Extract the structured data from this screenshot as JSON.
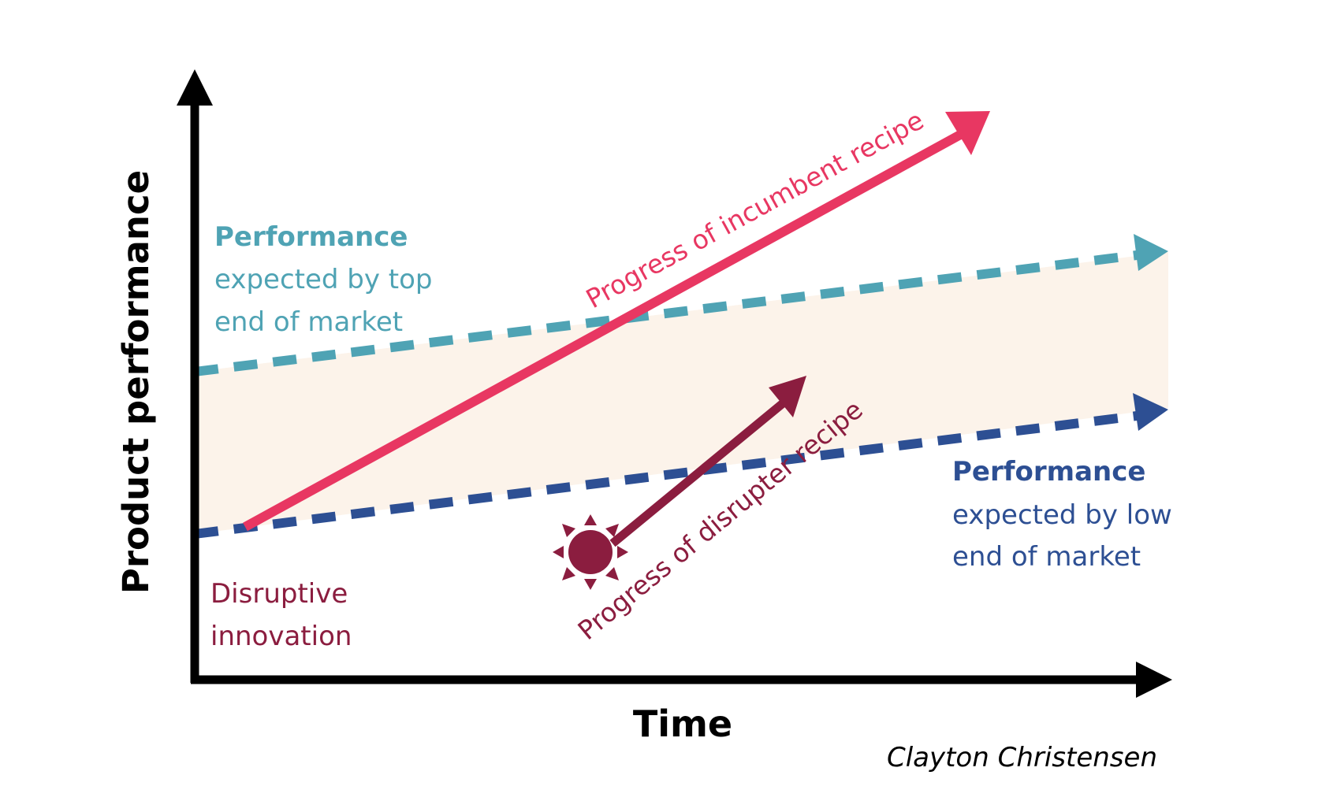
{
  "axes": {
    "y_label": "Product performance",
    "x_label": "Time"
  },
  "labels": {
    "top_market": {
      "title": "Performance",
      "line1": "expected by top",
      "line2": "end of market",
      "color": "#4fa3b4"
    },
    "low_market": {
      "title": "Performance",
      "line1": "expected by low",
      "line2": "end of market",
      "color": "#2d4f93"
    },
    "disruptive": {
      "line1": "Disruptive",
      "line2": "innovation",
      "color": "#8b1d3f"
    },
    "incumbent_arrow": {
      "text": "Progress of incumbent recipe",
      "color": "#e83762"
    },
    "disrupter_arrow": {
      "text": "Progress of disrupter recipe",
      "color": "#8b1d3f"
    },
    "credit": "Clayton Christensen"
  },
  "colors": {
    "band_fill": "#fcf3ea",
    "axis": "#000000"
  },
  "icons": {
    "disruption_marker": "sun-icon"
  }
}
